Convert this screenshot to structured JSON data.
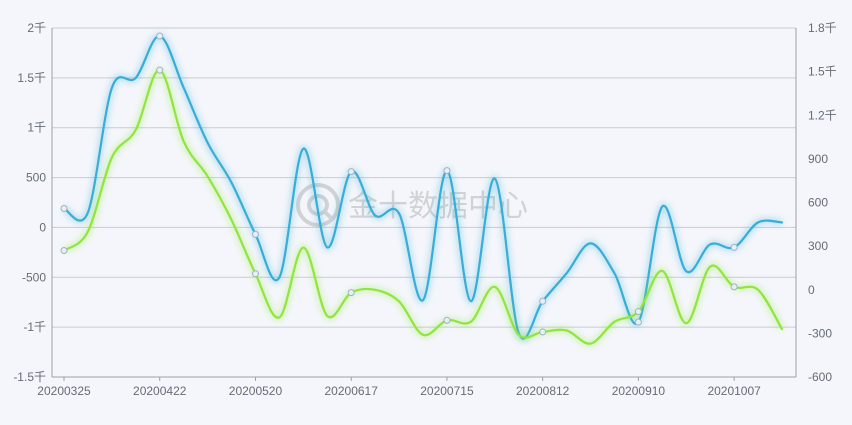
{
  "watermark": {
    "text": "金十数据中心",
    "icon": "jin10-logo-icon"
  },
  "colors": {
    "series_blue": "#36aed6",
    "series_green": "#8fe63c",
    "background": "#f4f6fb"
  },
  "chart_data": {
    "type": "line",
    "title": "",
    "xlabel": "",
    "ylabel": "",
    "x": [
      "20200325",
      "20200401",
      "20200408",
      "20200415",
      "20200422",
      "20200429",
      "20200506",
      "20200513",
      "20200520",
      "20200527",
      "20200603",
      "20200610",
      "20200617",
      "20200624",
      "20200701",
      "20200708",
      "20200715",
      "20200722",
      "20200729",
      "20200805",
      "20200812",
      "20200819",
      "20200826",
      "20200902",
      "20200910",
      "20200916",
      "20200923",
      "20200930",
      "20201007",
      "20201014",
      "20201021"
    ],
    "x_tick_labels": [
      "20200325",
      "20200422",
      "20200520",
      "20200617",
      "20200715",
      "20200812",
      "20200910",
      "20201007"
    ],
    "left_axis": {
      "ylim": [
        -1500,
        2000
      ],
      "ticks": [
        "-1.5千",
        "-1千",
        "-500",
        "0",
        "500",
        "1千",
        "1.5千",
        "2千"
      ]
    },
    "right_axis": {
      "ylim": [
        -600,
        1800
      ],
      "ticks": [
        "-600",
        "-300",
        "0",
        "300",
        "600",
        "900",
        "1.2千",
        "1.5千",
        "1.8千"
      ]
    },
    "grid": true,
    "legend": "none",
    "smooth": true,
    "series": [
      {
        "axis": "left",
        "color": "#36aed6",
        "values": [
          190,
          150,
          1400,
          1500,
          1920,
          1400,
          850,
          450,
          -70,
          -500,
          790,
          -200,
          560,
          120,
          140,
          -730,
          570,
          -740,
          490,
          -1060,
          -740,
          -460,
          -160,
          -460,
          -950,
          210,
          -440,
          -170,
          -200,
          50,
          50
        ]
      },
      {
        "axis": "right",
        "color": "#8fe63c",
        "values": [
          270,
          400,
          910,
          1100,
          1510,
          1020,
          780,
          480,
          110,
          -190,
          290,
          -180,
          -20,
          0,
          -80,
          -310,
          -210,
          -220,
          20,
          -310,
          -290,
          -280,
          -370,
          -220,
          -150,
          130,
          -230,
          160,
          20,
          0,
          -270
        ]
      }
    ],
    "markers": [
      {
        "series": 0,
        "indices": [
          0,
          4,
          8,
          12,
          16,
          20,
          24,
          28
        ]
      },
      {
        "series": 1,
        "indices": [
          0,
          4,
          8,
          12,
          16,
          20,
          24,
          28
        ]
      }
    ]
  }
}
